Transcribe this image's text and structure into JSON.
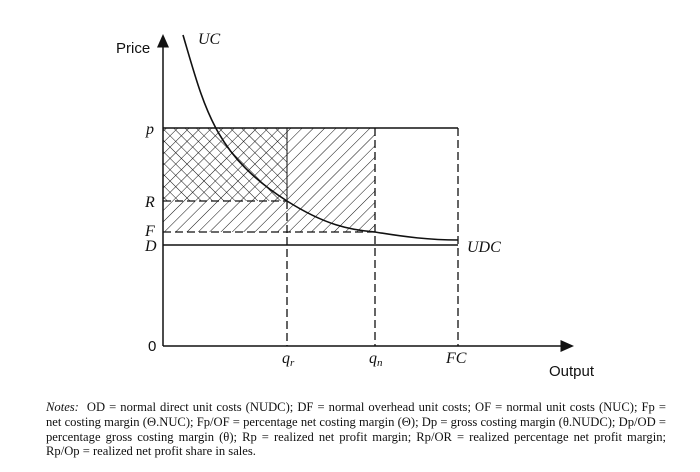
{
  "diagram": {
    "y_axis_label": "Price",
    "x_axis_label": "Output",
    "origin_label": "0",
    "price_labels": {
      "p": "p",
      "R": "R",
      "F": "F",
      "D": "D"
    },
    "quantity_labels": {
      "qr": "q",
      "qr_sub": "r",
      "qn": "q",
      "qn_sub": "n",
      "FC": "FC"
    },
    "curve_labels": {
      "uc": "UC",
      "udc": "UDC"
    }
  },
  "notes": {
    "label": "Notes:",
    "text": "OD = normal direct unit costs (NUDC); DF = normal overhead unit costs; OF = normal unit costs (NUC); Fp = net costing margin (Θ.NUC); Fp/OF = percentage net costing margin (Θ); Dp = gross costing margin (θ.NUDC); Dp/OD = percentage gross costing margin (θ); Rp = realized net profit margin; Rp/OR = realized percentage net profit margin; Rp/Op = realized net profit share in sales."
  }
}
